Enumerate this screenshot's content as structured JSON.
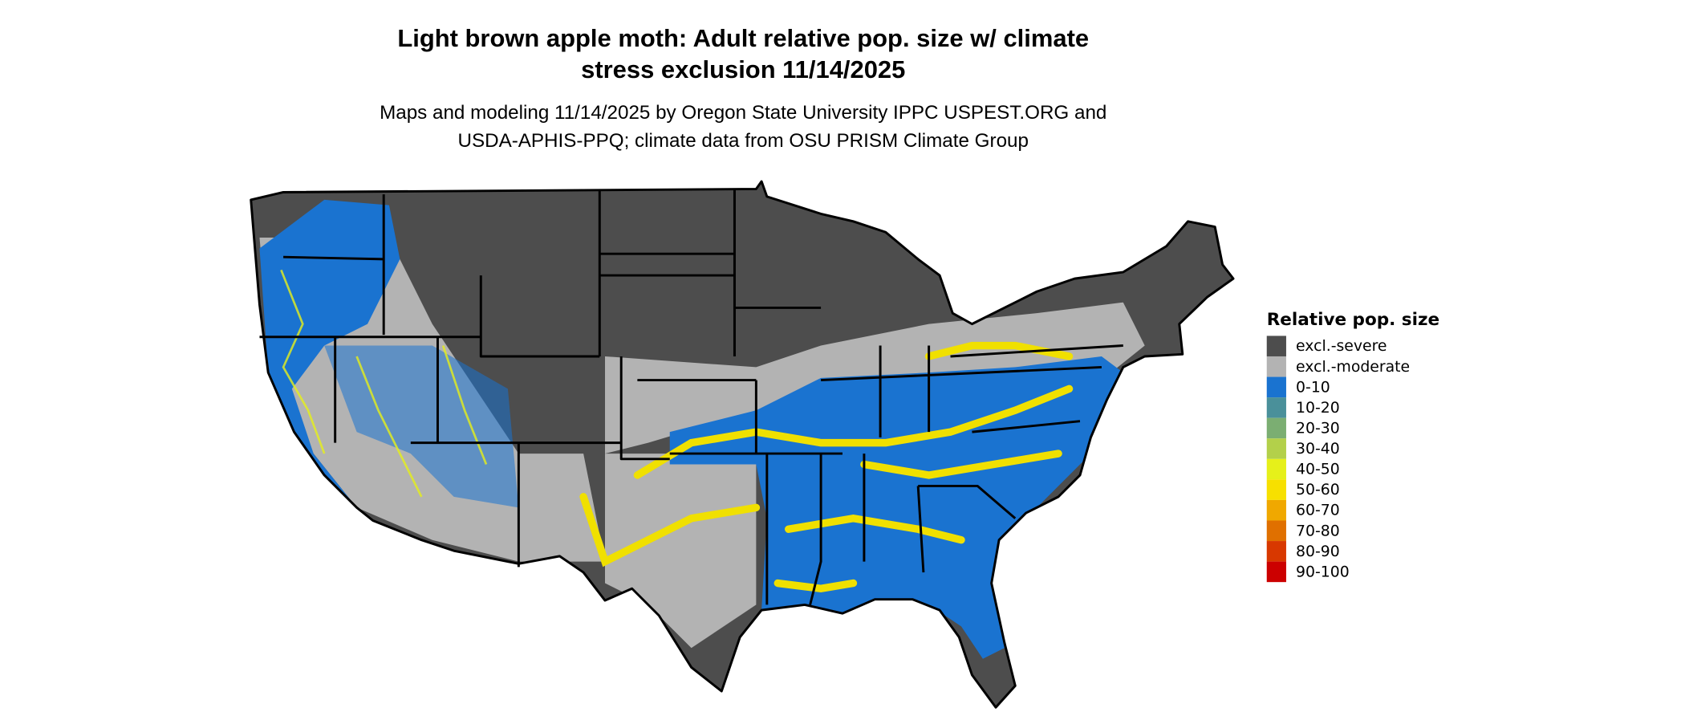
{
  "title_line1": "Light brown apple moth: Adult relative pop. size w/ climate",
  "title_line2": "stress exclusion 11/14/2025",
  "subtitle_line1": "Maps and modeling 11/14/2025 by Oregon State University IPPC USPEST.ORG and",
  "subtitle_line2": "USDA-APHIS-PPQ; climate data from OSU PRISM Climate Group",
  "legend": {
    "title": "Relative pop. size",
    "items": [
      {
        "label": "excl.-severe",
        "color": "#4d4d4d"
      },
      {
        "label": "excl.-moderate",
        "color": "#b3b3b3"
      },
      {
        "label": "0-10",
        "color": "#1a73d0"
      },
      {
        "label": "10-20",
        "color": "#4a909a"
      },
      {
        "label": "20-30",
        "color": "#7bae72"
      },
      {
        "label": "30-40",
        "color": "#b3d04a"
      },
      {
        "label": "40-50",
        "color": "#e6f01a"
      },
      {
        "label": "50-60",
        "color": "#f7e000"
      },
      {
        "label": "60-70",
        "color": "#f0a800"
      },
      {
        "label": "70-80",
        "color": "#e07000"
      },
      {
        "label": "80-90",
        "color": "#d83800"
      },
      {
        "label": "90-100",
        "color": "#cc0000"
      }
    ]
  }
}
